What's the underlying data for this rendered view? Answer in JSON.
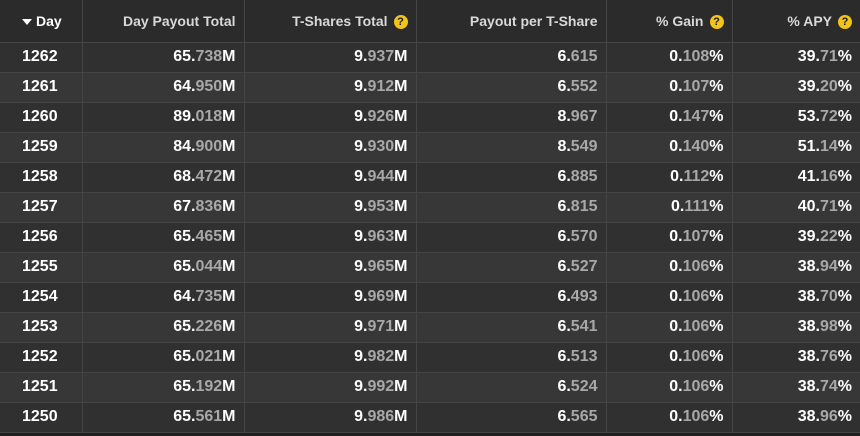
{
  "header": {
    "day": "Day",
    "payout_total": "Day Payout Total",
    "tshares_total": "T-Shares Total",
    "payout_per_tshare": "Payout per T-Share",
    "gain": "% Gain",
    "apy": "% APY",
    "help_glyph": "?"
  },
  "colors": {
    "accent": "#f2c31b",
    "dim_text": "#a8a8a8"
  },
  "rows": [
    {
      "day": "1262",
      "payout": [
        "65.",
        "738",
        "M"
      ],
      "tshares": [
        "9.",
        "937",
        "M"
      ],
      "pps": [
        "6.",
        "615"
      ],
      "gain": [
        "0.",
        "108",
        "%"
      ],
      "apy": [
        "39.",
        "71",
        "%"
      ]
    },
    {
      "day": "1261",
      "payout": [
        "64.",
        "950",
        "M"
      ],
      "tshares": [
        "9.",
        "912",
        "M"
      ],
      "pps": [
        "6.",
        "552"
      ],
      "gain": [
        "0.",
        "107",
        "%"
      ],
      "apy": [
        "39.",
        "20",
        "%"
      ]
    },
    {
      "day": "1260",
      "payout": [
        "89.",
        "018",
        "M"
      ],
      "tshares": [
        "9.",
        "926",
        "M"
      ],
      "pps": [
        "8.",
        "967"
      ],
      "gain": [
        "0.",
        "147",
        "%"
      ],
      "apy": [
        "53.",
        "72",
        "%"
      ]
    },
    {
      "day": "1259",
      "payout": [
        "84.",
        "900",
        "M"
      ],
      "tshares": [
        "9.",
        "930",
        "M"
      ],
      "pps": [
        "8.",
        "549"
      ],
      "gain": [
        "0.",
        "140",
        "%"
      ],
      "apy": [
        "51.",
        "14",
        "%"
      ]
    },
    {
      "day": "1258",
      "payout": [
        "68.",
        "472",
        "M"
      ],
      "tshares": [
        "9.",
        "944",
        "M"
      ],
      "pps": [
        "6.",
        "885"
      ],
      "gain": [
        "0.",
        "112",
        "%"
      ],
      "apy": [
        "41.",
        "16",
        "%"
      ]
    },
    {
      "day": "1257",
      "payout": [
        "67.",
        "836",
        "M"
      ],
      "tshares": [
        "9.",
        "953",
        "M"
      ],
      "pps": [
        "6.",
        "815"
      ],
      "gain": [
        "0.",
        "111",
        "%"
      ],
      "apy": [
        "40.",
        "71",
        "%"
      ]
    },
    {
      "day": "1256",
      "payout": [
        "65.",
        "465",
        "M"
      ],
      "tshares": [
        "9.",
        "963",
        "M"
      ],
      "pps": [
        "6.",
        "570"
      ],
      "gain": [
        "0.",
        "107",
        "%"
      ],
      "apy": [
        "39.",
        "22",
        "%"
      ]
    },
    {
      "day": "1255",
      "payout": [
        "65.",
        "044",
        "M"
      ],
      "tshares": [
        "9.",
        "965",
        "M"
      ],
      "pps": [
        "6.",
        "527"
      ],
      "gain": [
        "0.",
        "106",
        "%"
      ],
      "apy": [
        "38.",
        "94",
        "%"
      ]
    },
    {
      "day": "1254",
      "payout": [
        "64.",
        "735",
        "M"
      ],
      "tshares": [
        "9.",
        "969",
        "M"
      ],
      "pps": [
        "6.",
        "493"
      ],
      "gain": [
        "0.",
        "106",
        "%"
      ],
      "apy": [
        "38.",
        "70",
        "%"
      ]
    },
    {
      "day": "1253",
      "payout": [
        "65.",
        "226",
        "M"
      ],
      "tshares": [
        "9.",
        "971",
        "M"
      ],
      "pps": [
        "6.",
        "541"
      ],
      "gain": [
        "0.",
        "106",
        "%"
      ],
      "apy": [
        "38.",
        "98",
        "%"
      ]
    },
    {
      "day": "1252",
      "payout": [
        "65.",
        "021",
        "M"
      ],
      "tshares": [
        "9.",
        "982",
        "M"
      ],
      "pps": [
        "6.",
        "513"
      ],
      "gain": [
        "0.",
        "106",
        "%"
      ],
      "apy": [
        "38.",
        "76",
        "%"
      ]
    },
    {
      "day": "1251",
      "payout": [
        "65.",
        "192",
        "M"
      ],
      "tshares": [
        "9.",
        "992",
        "M"
      ],
      "pps": [
        "6.",
        "524"
      ],
      "gain": [
        "0.",
        "106",
        "%"
      ],
      "apy": [
        "38.",
        "74",
        "%"
      ]
    },
    {
      "day": "1250",
      "payout": [
        "65.",
        "561",
        "M"
      ],
      "tshares": [
        "9.",
        "986",
        "M"
      ],
      "pps": [
        "6.",
        "565"
      ],
      "gain": [
        "0.",
        "106",
        "%"
      ],
      "apy": [
        "38.",
        "96",
        "%"
      ]
    }
  ]
}
